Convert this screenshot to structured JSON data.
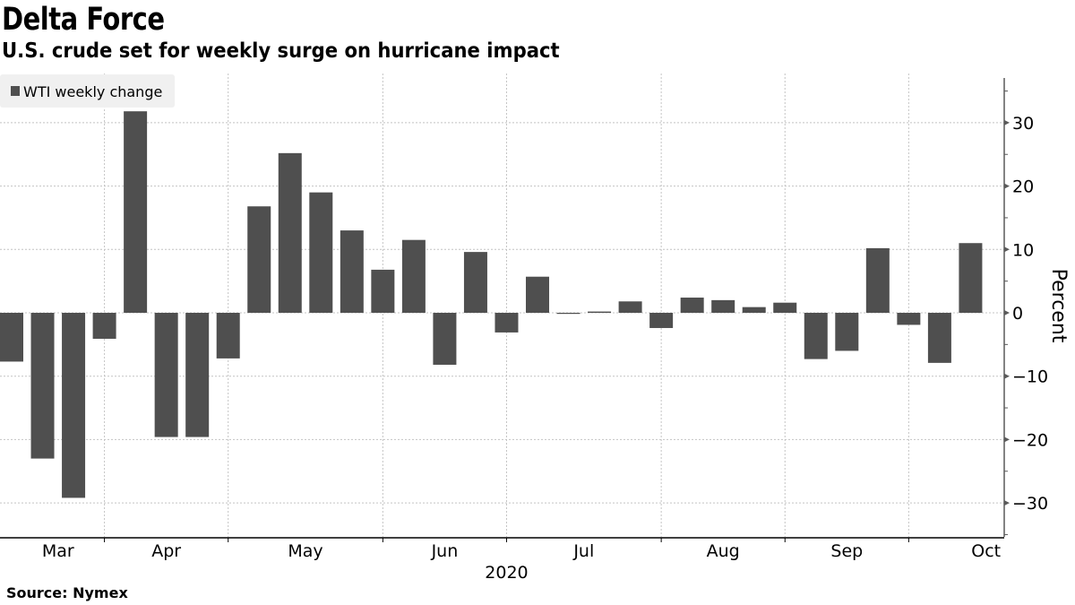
{
  "header": {
    "title": "Delta Force",
    "subtitle": "U.S. crude set for weekly surge on hurricane impact"
  },
  "footer": {
    "source": "Source: Nymex"
  },
  "colors": {
    "bar": "#4f4f4f",
    "grid": "#c4c4c4",
    "axis": "#5a5a5a",
    "legend_bg": "#f0f0f0"
  },
  "chart_data": {
    "type": "bar",
    "title": "Delta Force",
    "subtitle": "U.S. crude set for weekly surge on hurricane impact",
    "xlabel": "2020",
    "ylabel": "Percent",
    "ylim": [
      -35,
      37
    ],
    "yticks": [
      -30,
      -20,
      -10,
      0,
      10,
      20,
      30
    ],
    "ytick_labels": [
      "-30",
      "-20",
      "-10",
      "0",
      "10",
      "20",
      "30"
    ],
    "y_axis_side": "right",
    "grid": true,
    "legend": {
      "position": "top-left",
      "entries": [
        "WTI weekly change"
      ]
    },
    "x_month_ticks_at_week_index": [
      3,
      7,
      12,
      16,
      21,
      25,
      29
    ],
    "x_month_labels": [
      {
        "label": "Mar",
        "week_index": 1.5
      },
      {
        "label": "Apr",
        "week_index": 5.0
      },
      {
        "label": "May",
        "week_index": 9.5
      },
      {
        "label": "Jun",
        "week_index": 14.0
      },
      {
        "label": "Jul",
        "week_index": 18.5
      },
      {
        "label": "Aug",
        "week_index": 23.0
      },
      {
        "label": "Sep",
        "week_index": 27.0
      },
      {
        "label": "Oct",
        "week_index": 31.5
      }
    ],
    "year_label": {
      "label": "2020",
      "week_index": 16
    },
    "series": [
      {
        "name": "WTI weekly change",
        "values": [
          -7.7,
          -23.0,
          -29.2,
          -4.1,
          31.8,
          -19.6,
          -19.6,
          -7.2,
          16.8,
          25.2,
          19.0,
          13.0,
          6.8,
          11.5,
          -8.2,
          9.6,
          -3.1,
          5.7,
          -0.1,
          0.2,
          1.8,
          -2.4,
          2.4,
          2.0,
          0.9,
          1.6,
          -7.3,
          -6.0,
          10.2,
          -1.9,
          -7.9,
          11.0
        ]
      }
    ]
  }
}
